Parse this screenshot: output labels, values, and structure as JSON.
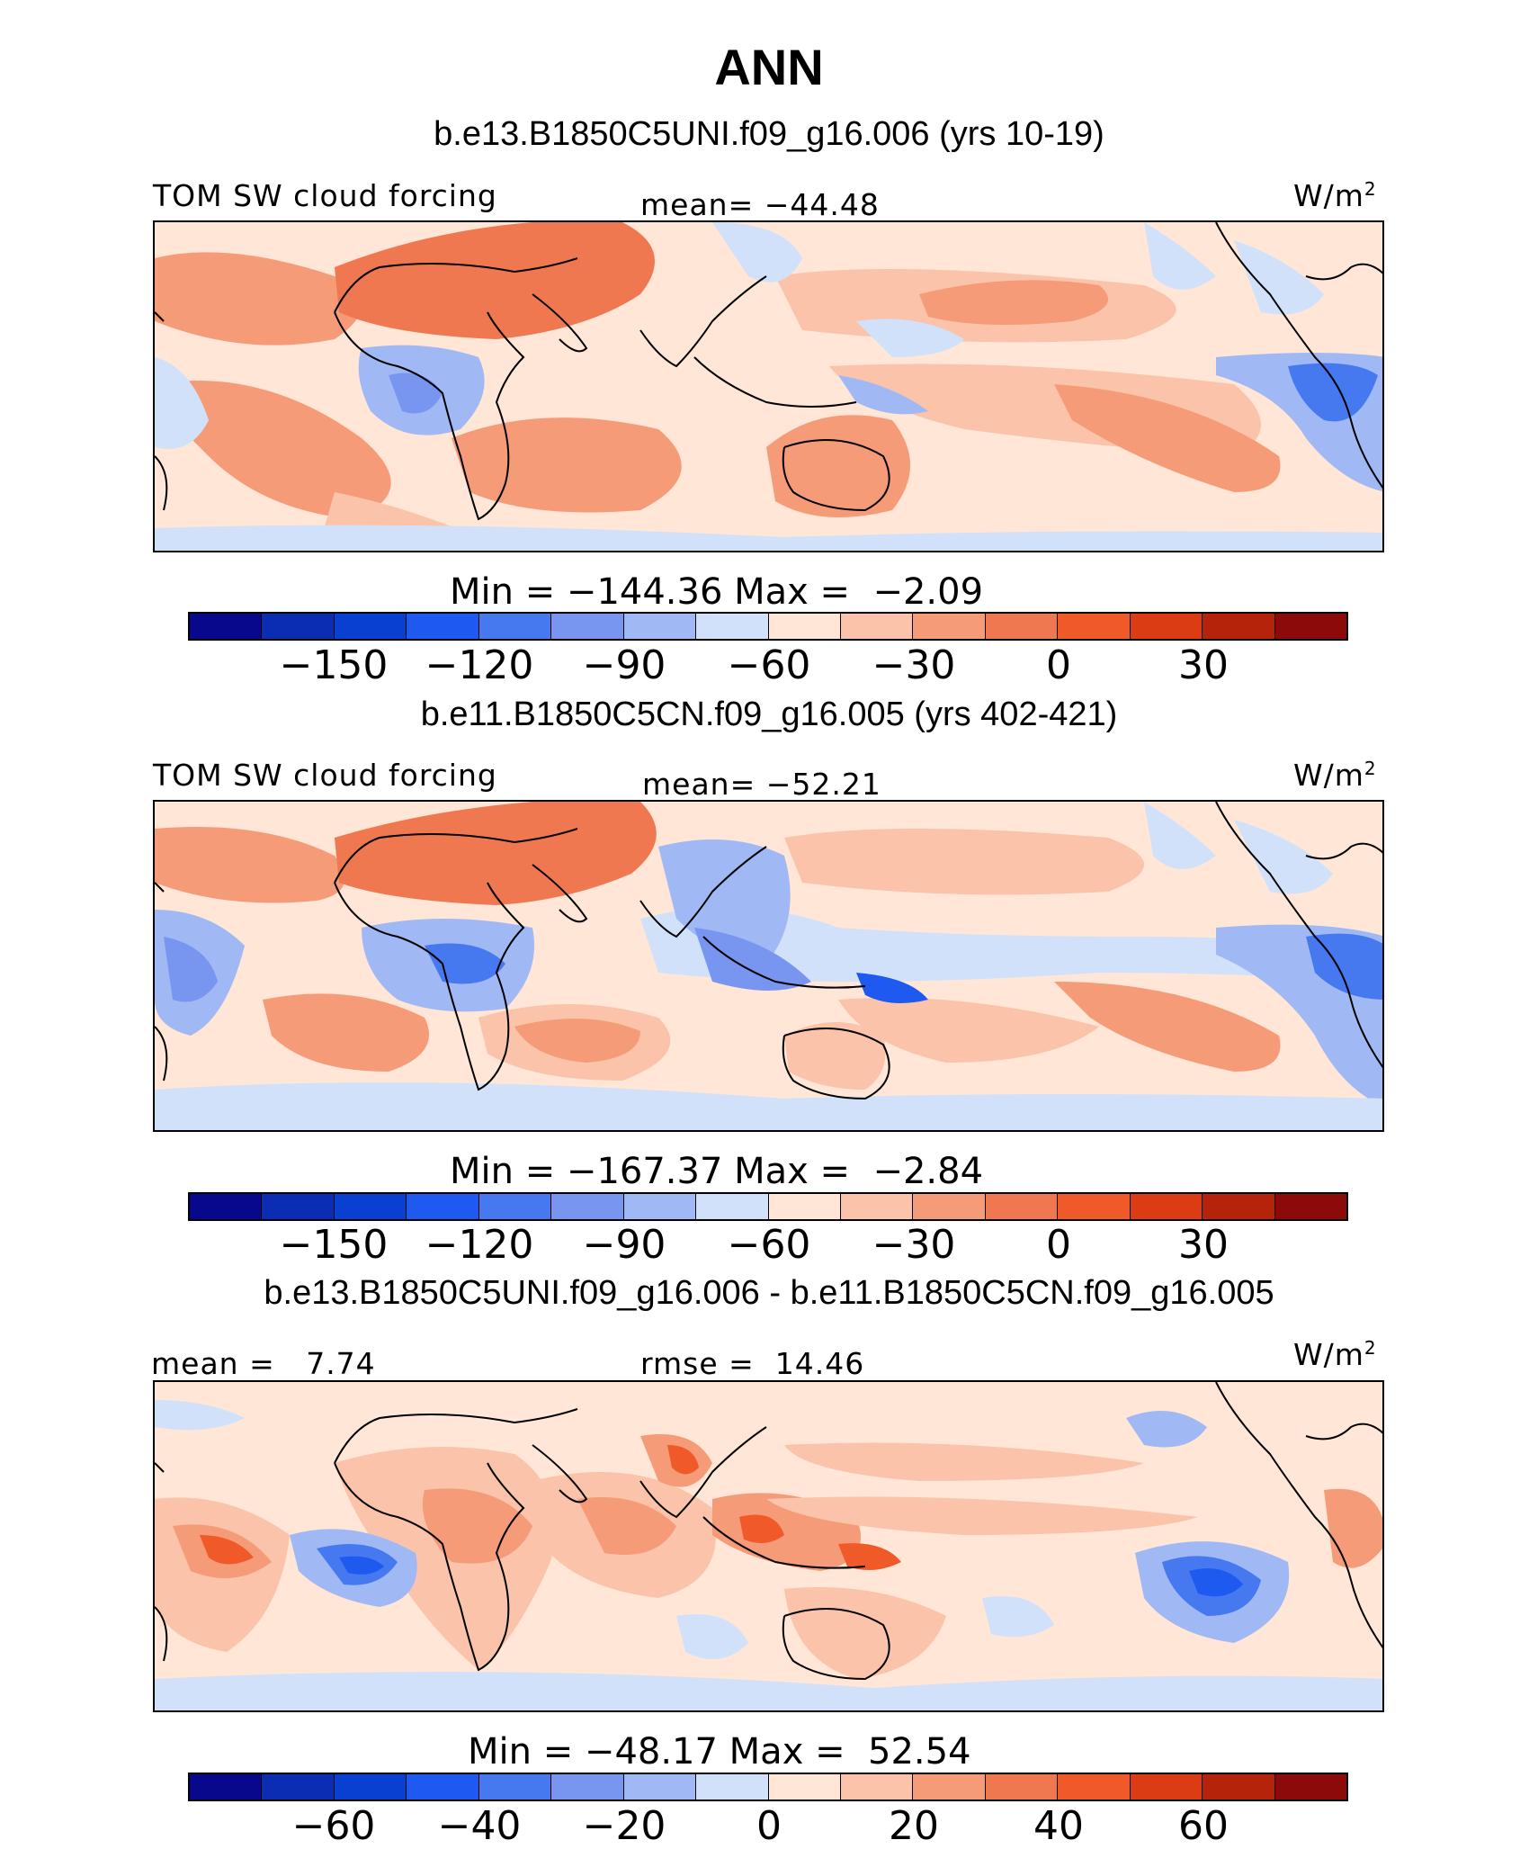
{
  "title": "ANN",
  "colorbar_colors": [
    "#08088c",
    "#0a2db4",
    "#0a40d2",
    "#1e5af0",
    "#4678f0",
    "#7896f0",
    "#a0b9f5",
    "#d2e1fa",
    "#ffe6d6",
    "#fac3aa",
    "#f59b78",
    "#f07850",
    "#f05a28",
    "#dc3c14",
    "#b4230a",
    "#8c0a0a"
  ],
  "panels": [
    {
      "title": "b.e13.B1850C5UNI.f09_g16.006 (yrs 10-19)",
      "left_label": "TOM SW cloud forcing",
      "center_label": "mean= −44.48",
      "units_base": "W/m",
      "units_sup": "2",
      "minmax": "Min = −144.36 Max =  −2.09",
      "colorbar_ticks": [
        "−150",
        "−120",
        "−90",
        "−60",
        "−30",
        "0",
        "30"
      ]
    },
    {
      "title": "b.e11.B1850C5CN.f09_g16.005 (yrs 402-421)",
      "left_label": "TOM SW cloud forcing",
      "center_label": "mean= −52.21",
      "units_base": "W/m",
      "units_sup": "2",
      "minmax": "Min = −167.37 Max =  −2.84",
      "colorbar_ticks": [
        "−150",
        "−120",
        "−90",
        "−60",
        "−30",
        "0",
        "30"
      ]
    },
    {
      "title": "b.e13.B1850C5UNI.f09_g16.006 - b.e11.B1850C5CN.f09_g16.005",
      "left_label": "mean =   7.74",
      "center_label": "rmse =  14.46",
      "units_base": "W/m",
      "units_sup": "2",
      "minmax": "Min = −48.17 Max =  52.54",
      "colorbar_ticks": [
        "−60",
        "−40",
        "−20",
        "0",
        "20",
        "40",
        "60"
      ]
    }
  ]
}
